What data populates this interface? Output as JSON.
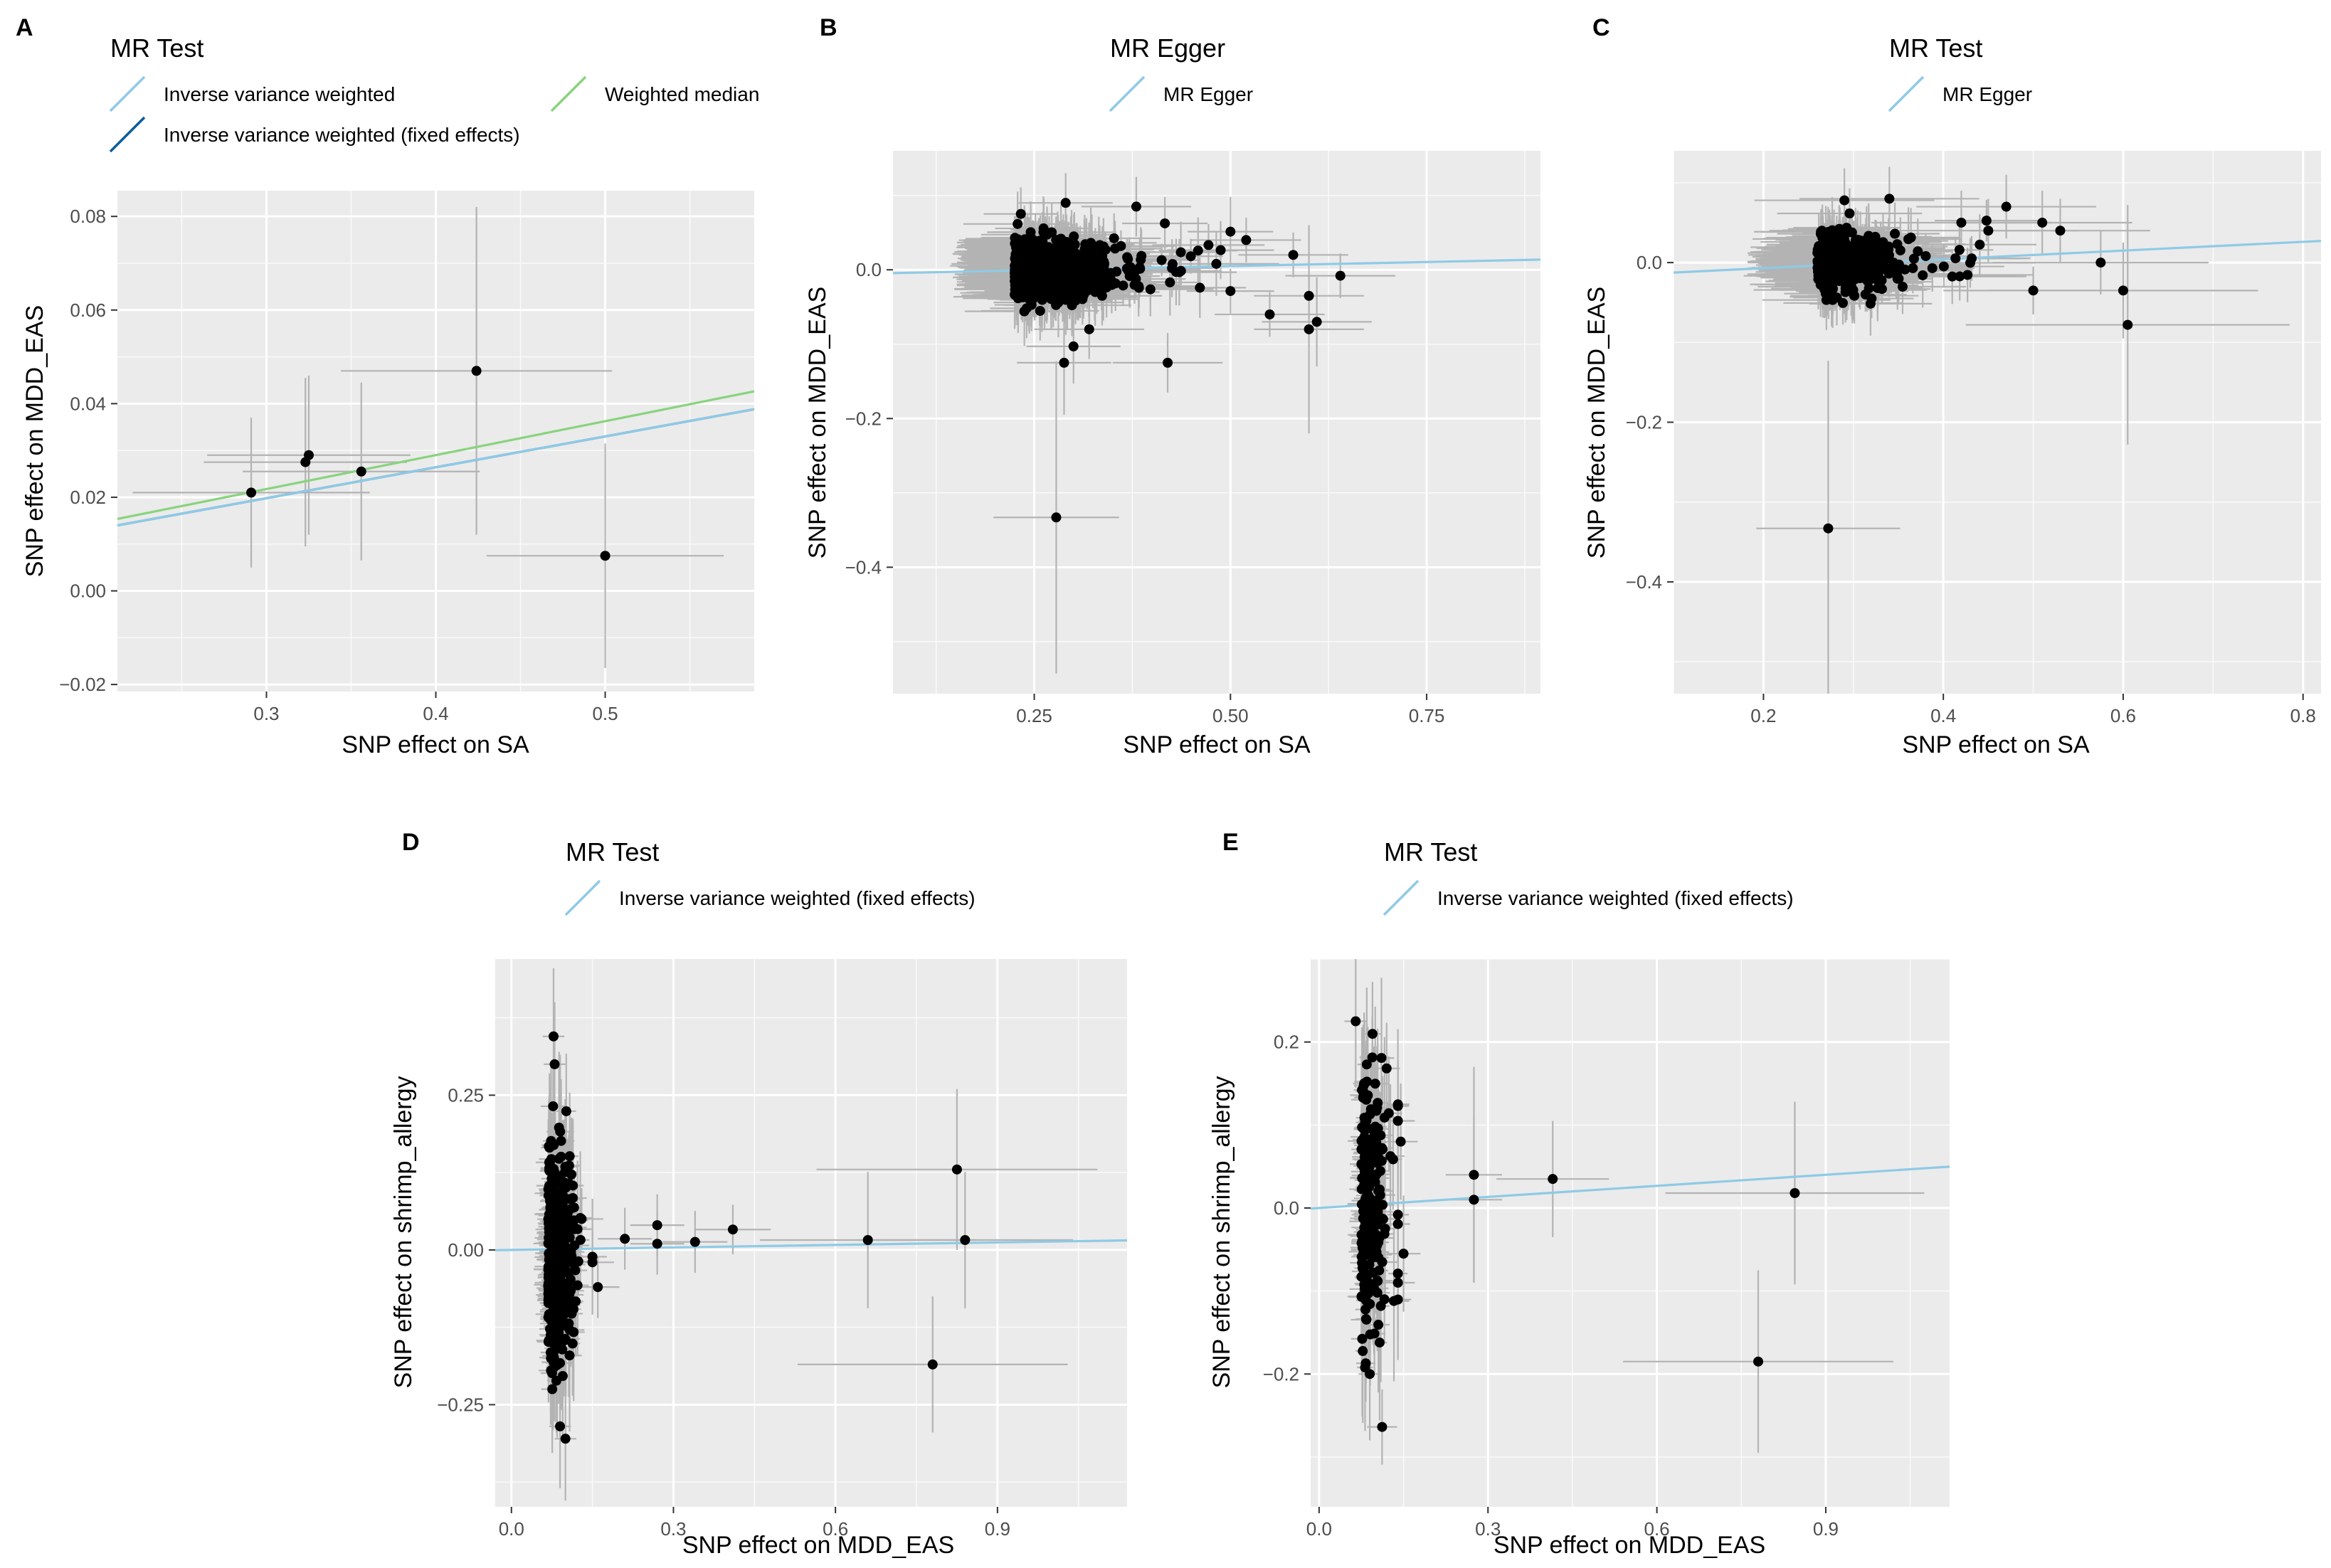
{
  "chart_data": [
    {
      "panel_label": "A",
      "type": "scatter",
      "legend_title": "MR Test",
      "legend_entries": [
        {
          "label": "Inverse variance weighted",
          "color": "#8ecae6"
        },
        {
          "label": "Weighted median",
          "color": "#88d37e"
        },
        {
          "label": "Inverse variance weighted (fixed effects)",
          "color": "#0b5e9a"
        }
      ],
      "xlabel": "SNP effect on SA",
      "ylabel": "SNP effect on MDD_EAS",
      "xlim": [
        0.212,
        0.588
      ],
      "ylim": [
        -0.0215,
        0.0855
      ],
      "xticks": [
        0.3,
        0.4,
        0.5
      ],
      "xtick_labels": [
        "0.3",
        "0.4",
        "0.5"
      ],
      "yticks": [
        -0.02,
        0,
        0.02,
        0.04,
        0.06,
        0.08
      ],
      "ytick_labels": [
        "−0.02",
        "0.00",
        "0.02",
        "0.04",
        "0.06",
        "0.08"
      ],
      "points": [
        {
          "x": 0.291,
          "y": 0.021,
          "xse": 0.07,
          "yse": 0.016
        },
        {
          "x": 0.323,
          "y": 0.0275,
          "xse": 0.06,
          "yse": 0.018
        },
        {
          "x": 0.325,
          "y": 0.029,
          "xse": 0.06,
          "yse": 0.017
        },
        {
          "x": 0.356,
          "y": 0.0255,
          "xse": 0.07,
          "yse": 0.019
        },
        {
          "x": 0.424,
          "y": 0.047,
          "xse": 0.08,
          "yse": 0.035
        },
        {
          "x": 0.5,
          "y": 0.0075,
          "xse": 0.07,
          "yse": 0.024
        }
      ],
      "lines": [
        {
          "name": "Weighted median",
          "color": "#88d37e",
          "slope": 0.0725
        },
        {
          "name": "Inverse variance weighted (fixed effects)",
          "color": "#0b5e9a",
          "slope": 0.066
        },
        {
          "name": "Inverse variance weighted",
          "color": "#8ecae6",
          "slope": 0.066
        }
      ]
    },
    {
      "panel_label": "B",
      "type": "scatter",
      "legend_title": "MR Egger",
      "legend_entries": [
        {
          "label": "MR Egger",
          "color": "#8ecae6"
        }
      ],
      "xlabel": "SNP effect on SA",
      "ylabel": "SNP effect on MDD_EAS",
      "xlim": [
        0.07,
        0.895
      ],
      "ylim": [
        -0.57,
        0.16
      ],
      "xticks": [
        0.25,
        0.5,
        0.75
      ],
      "xtick_labels": [
        "0.25",
        "0.50",
        "0.75"
      ],
      "yticks": [
        -0.4,
        -0.2,
        0
      ],
      "ytick_labels": [
        "−0.4",
        "−0.2",
        "0.0"
      ],
      "points": [
        {
          "x": 0.278,
          "y": -0.333,
          "xse": 0.08,
          "yse": 0.21
        },
        {
          "x": 0.288,
          "y": -0.125,
          "xse": 0.06,
          "yse": 0.07
        },
        {
          "x": 0.3,
          "y": -0.103,
          "xse": 0.06,
          "yse": 0.05
        },
        {
          "x": 0.32,
          "y": -0.08,
          "xse": 0.07,
          "yse": 0.04
        },
        {
          "x": 0.42,
          "y": -0.125,
          "xse": 0.07,
          "yse": 0.04
        },
        {
          "x": 0.6,
          "y": -0.08,
          "xse": 0.07,
          "yse": 0.14
        },
        {
          "x": 0.61,
          "y": -0.07,
          "xse": 0.07,
          "yse": 0.06
        },
        {
          "x": 0.64,
          "y": -0.008,
          "xse": 0.07,
          "yse": 0.03
        },
        {
          "x": 0.6,
          "y": -0.035,
          "xse": 0.07,
          "yse": 0.03
        },
        {
          "x": 0.58,
          "y": 0.02,
          "xse": 0.07,
          "yse": 0.03
        },
        {
          "x": 0.38,
          "y": 0.085,
          "xse": 0.07,
          "yse": 0.04
        },
        {
          "x": 0.29,
          "y": 0.09,
          "xse": 0.06,
          "yse": 0.04
        },
        {
          "x": 0.52,
          "y": 0.04,
          "xse": 0.07,
          "yse": 0.03
        },
        {
          "x": 0.55,
          "y": -0.06,
          "xse": 0.07,
          "yse": 0.03
        }
      ],
      "cluster": {
        "n": 850,
        "x_center": 0.225,
        "x_spread": 0.05,
        "x_min": 0.18,
        "x_max": 0.5,
        "y_spread": 0.02,
        "xse": 0.06,
        "yse": 0.035,
        "seed": 7
      },
      "lines": [
        {
          "name": "MR Egger",
          "color": "#8ecae6",
          "intercept": -0.006,
          "slope": 0.022
        }
      ]
    },
    {
      "panel_label": "C",
      "type": "scatter",
      "legend_title": "MR Test",
      "legend_entries": [
        {
          "label": "MR Egger",
          "color": "#8ecae6"
        }
      ],
      "xlabel": "SNP effect on SA",
      "ylabel": "SNP effect on MDD_EAS",
      "xlim": [
        0.1,
        0.82
      ],
      "ylim": [
        -0.54,
        0.14
      ],
      "xticks": [
        0.2,
        0.4,
        0.6,
        0.8
      ],
      "xtick_labels": [
        "0.2",
        "0.4",
        "0.6",
        "0.8"
      ],
      "yticks": [
        -0.4,
        -0.2,
        0
      ],
      "ytick_labels": [
        "−0.4",
        "−0.2",
        "0.0"
      ],
      "points": [
        {
          "x": 0.272,
          "y": -0.333,
          "xse": 0.08,
          "yse": 0.21
        },
        {
          "x": 0.605,
          "y": -0.078,
          "xse": 0.18,
          "yse": 0.15
        },
        {
          "x": 0.6,
          "y": -0.035,
          "xse": 0.15,
          "yse": 0.06
        },
        {
          "x": 0.575,
          "y": 0,
          "xse": 0.12,
          "yse": 0.04
        },
        {
          "x": 0.53,
          "y": 0.04,
          "xse": 0.1,
          "yse": 0.04
        },
        {
          "x": 0.51,
          "y": 0.05,
          "xse": 0.1,
          "yse": 0.04
        },
        {
          "x": 0.47,
          "y": 0.07,
          "xse": 0.1,
          "yse": 0.04
        },
        {
          "x": 0.34,
          "y": 0.08,
          "xse": 0.1,
          "yse": 0.04
        },
        {
          "x": 0.29,
          "y": 0.078,
          "xse": 0.1,
          "yse": 0.04
        },
        {
          "x": 0.5,
          "y": -0.035,
          "xse": 0.1,
          "yse": 0.03
        },
        {
          "x": 0.45,
          "y": 0.04,
          "xse": 0.1,
          "yse": 0.04
        },
        {
          "x": 0.42,
          "y": 0.05,
          "xse": 0.1,
          "yse": 0.04
        }
      ],
      "cluster": {
        "n": 600,
        "x_center": 0.26,
        "x_spread": 0.035,
        "x_min": 0.2,
        "x_max": 0.5,
        "y_spread": 0.018,
        "xse": 0.06,
        "yse": 0.03,
        "seed": 13
      },
      "lines": [
        {
          "name": "MR Egger",
          "color": "#8ecae6",
          "intercept": -0.018,
          "slope": 0.055
        }
      ]
    },
    {
      "panel_label": "D",
      "type": "scatter",
      "legend_title": "MR Test",
      "legend_entries": [
        {
          "label": "Inverse variance weighted (fixed effects)",
          "color": "#8ecae6"
        }
      ],
      "xlabel": "SNP effect on MDD_EAS",
      "ylabel": "SNP effect on shrimp_allergy",
      "xlim": [
        -0.03,
        1.14
      ],
      "ylim": [
        -0.415,
        0.47
      ],
      "xticks": [
        0,
        0.3,
        0.6,
        0.9
      ],
      "xtick_labels": [
        "0.0",
        "0.3",
        "0.6",
        "0.9"
      ],
      "yticks": [
        -0.25,
        0,
        0.25
      ],
      "ytick_labels": [
        "−0.25",
        "0.00",
        "0.25"
      ],
      "points": [
        {
          "x": 0.078,
          "y": 0.345,
          "xse": 0.02,
          "yse": 0.11
        },
        {
          "x": 0.08,
          "y": 0.3,
          "xse": 0.02,
          "yse": 0.1
        },
        {
          "x": 0.1,
          "y": -0.305,
          "xse": 0.02,
          "yse": 0.1
        },
        {
          "x": 0.09,
          "y": -0.285,
          "xse": 0.02,
          "yse": 0.1
        },
        {
          "x": 0.21,
          "y": 0.018,
          "xse": 0.05,
          "yse": 0.05
        },
        {
          "x": 0.27,
          "y": 0.04,
          "xse": 0.05,
          "yse": 0.05
        },
        {
          "x": 0.27,
          "y": 0.01,
          "xse": 0.05,
          "yse": 0.05
        },
        {
          "x": 0.34,
          "y": 0.013,
          "xse": 0.06,
          "yse": 0.05
        },
        {
          "x": 0.41,
          "y": 0.033,
          "xse": 0.07,
          "yse": 0.04
        },
        {
          "x": 0.66,
          "y": 0.016,
          "xse": 0.2,
          "yse": 0.11
        },
        {
          "x": 0.825,
          "y": 0.13,
          "xse": 0.26,
          "yse": 0.13
        },
        {
          "x": 0.84,
          "y": 0.016,
          "xse": 0.2,
          "yse": 0.11
        },
        {
          "x": 0.78,
          "y": -0.185,
          "xse": 0.25,
          "yse": 0.11
        },
        {
          "x": 0.16,
          "y": -0.06,
          "xse": 0.04,
          "yse": 0.05
        },
        {
          "x": 0.13,
          "y": 0.05,
          "xse": 0.04,
          "yse": 0.05
        },
        {
          "x": 0.15,
          "y": -0.02,
          "xse": 0.04,
          "yse": 0.05
        }
      ],
      "cluster": {
        "n": 420,
        "x_center": 0.068,
        "x_spread": 0.018,
        "x_min": 0.035,
        "x_max": 0.15,
        "y_spread": 0.09,
        "xse": 0.02,
        "yse": 0.09,
        "seed": 21
      },
      "lines": [
        {
          "name": "Inverse variance weighted (fixed effects)",
          "color": "#8ecae6",
          "intercept": 0,
          "slope": 0.0135
        }
      ]
    },
    {
      "panel_label": "E",
      "type": "scatter",
      "legend_title": "MR Test",
      "legend_entries": [
        {
          "label": "Inverse variance weighted (fixed effects)",
          "color": "#8ecae6"
        }
      ],
      "xlabel": "SNP effect on MDD_EAS",
      "ylabel": "SNP effect on shrimp_allergy",
      "xlim": [
        -0.015,
        1.12
      ],
      "ylim": [
        -0.36,
        0.3
      ],
      "xticks": [
        0,
        0.3,
        0.6,
        0.9
      ],
      "xtick_labels": [
        "0.0",
        "0.3",
        "0.6",
        "0.9"
      ],
      "yticks": [
        -0.2,
        0,
        0.2
      ],
      "ytick_labels": [
        "−0.2",
        "0.0",
        "0.2"
      ],
      "points": [
        {
          "x": 0.065,
          "y": 0.225,
          "xse": 0.02,
          "yse": 0.08
        },
        {
          "x": 0.09,
          "y": -0.2,
          "xse": 0.02,
          "yse": 0.08
        },
        {
          "x": 0.275,
          "y": 0.04,
          "xse": 0.05,
          "yse": 0.13
        },
        {
          "x": 0.275,
          "y": 0.01,
          "xse": 0.05,
          "yse": 0.1
        },
        {
          "x": 0.415,
          "y": 0.035,
          "xse": 0.1,
          "yse": 0.07
        },
        {
          "x": 0.845,
          "y": 0.018,
          "xse": 0.23,
          "yse": 0.11
        },
        {
          "x": 0.78,
          "y": -0.185,
          "xse": 0.24,
          "yse": 0.11
        },
        {
          "x": 0.14,
          "y": 0.105,
          "xse": 0.03,
          "yse": 0.07
        },
        {
          "x": 0.145,
          "y": 0.08,
          "xse": 0.03,
          "yse": 0.07
        },
        {
          "x": 0.15,
          "y": -0.055,
          "xse": 0.03,
          "yse": 0.07
        },
        {
          "x": 0.14,
          "y": -0.09,
          "xse": 0.03,
          "yse": 0.07
        }
      ],
      "cluster": {
        "n": 220,
        "x_center": 0.075,
        "x_spread": 0.018,
        "x_min": 0.045,
        "x_max": 0.14,
        "y_spread": 0.085,
        "xse": 0.02,
        "yse": 0.075,
        "seed": 37
      },
      "lines": [
        {
          "name": "Inverse variance weighted (fixed effects)",
          "color": "#8ecae6",
          "intercept": 0,
          "slope": 0.0445
        }
      ]
    }
  ]
}
